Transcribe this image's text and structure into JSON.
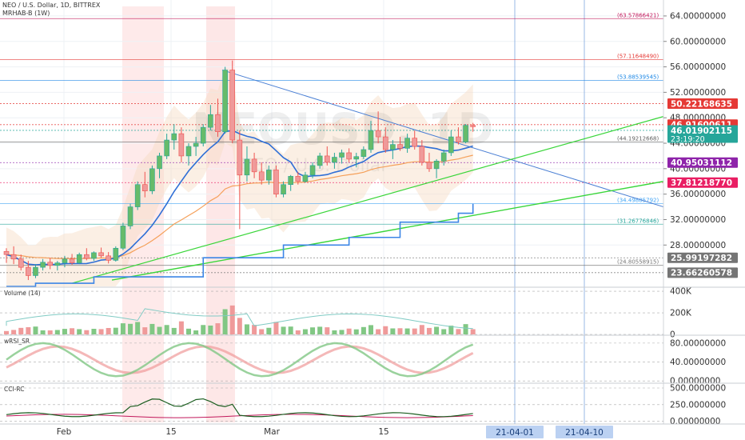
{
  "header": {
    "symbol_line": "NEO / U.S. Dollar, 1D, BITTREX",
    "indicator_line": "MRHAB-B (1W)"
  },
  "watermark": "NEOUSD, 1D",
  "watermark_sub": "NEO / U.S. Dollar",
  "colors": {
    "up": "#26a69a",
    "down": "#ef5350",
    "accent_blue": "#1e6fd9",
    "green_line": "#3ad63a",
    "orange_line": "#f5a05a",
    "magenta": "#e040fb",
    "purple": "#8e24aa"
  },
  "chart_data": {
    "type": "line",
    "title": "NEO / U.S. Dollar, 1D, BITTREX",
    "y_axis": {
      "min": 21.5,
      "max": 65.5,
      "ticks": [
        "64.00000000",
        "60.00000000",
        "56.00000000",
        "52.00000000",
        "48.00000000",
        "44.00000000",
        "40.00000000",
        "36.00000000",
        "32.00000000",
        "28.00000000"
      ]
    },
    "x_ticks": [
      "Feb",
      "15",
      "Mar",
      "15"
    ],
    "x_tick_dates": [
      "2021-02-01",
      "2021-02-15",
      "2021-03-01",
      "2021-03-15"
    ],
    "x_badges": [
      "21-04-01",
      "21-04-10"
    ],
    "price_badges": [
      {
        "value": "50.22168635",
        "y": 50.22,
        "color": "#e53935",
        "text": "#ffffff"
      },
      {
        "value": "46.91600611",
        "y": 46.92,
        "color": "#e53935",
        "text": "#ffffff"
      },
      {
        "value": "46.01902115",
        "y": 46.02,
        "color": "#26a69a",
        "text": "#ffffff",
        "countdown": "23:19:20"
      },
      {
        "value": "40.95031112",
        "y": 40.95,
        "color": "#8e24aa",
        "text": "#ffffff"
      },
      {
        "value": "37.81218770",
        "y": 37.81,
        "color": "#e91e63",
        "text": "#ffffff"
      },
      {
        "value": "25.99197282",
        "y": 25.99,
        "color": "#757575",
        "text": "#ffffff"
      },
      {
        "value": "23.66260578",
        "y": 23.66,
        "color": "#757575",
        "text": "#ffffff"
      }
    ],
    "fib_levels": [
      {
        "label": "(63.57866421)",
        "y": 63.58,
        "color": "#c2185b"
      },
      {
        "label": "(57.11648490)",
        "y": 57.12,
        "color": "#e53935"
      },
      {
        "label": "(53.88539545)",
        "y": 53.89,
        "color": "#1e88e5"
      },
      {
        "label": "(44.19212668)",
        "y": 44.19,
        "color": "#616161"
      },
      {
        "label": "(34.49885792)",
        "y": 34.5,
        "color": "#42a5f5"
      },
      {
        "label": "(31.26776846)",
        "y": 31.27,
        "color": "#26a69a"
      },
      {
        "label": "(24.80558915)",
        "y": 24.81,
        "color": "#757575"
      }
    ],
    "candles": [
      [
        27,
        27.5,
        25.2,
        26.5
      ],
      [
        26.5,
        27.8,
        25,
        25.8
      ],
      [
        25.8,
        26.5,
        24,
        24.5
      ],
      [
        24.5,
        25.5,
        22.5,
        23.2
      ],
      [
        23.2,
        25,
        22.8,
        24.5
      ],
      [
        24.5,
        25.8,
        24,
        25.3
      ],
      [
        25.3,
        26,
        24.2,
        24.8
      ],
      [
        24.8,
        25.5,
        24,
        25.2
      ],
      [
        25.2,
        26.3,
        24.5,
        25.8
      ],
      [
        25.8,
        26.6,
        24.9,
        25.2
      ],
      [
        25.2,
        26.8,
        25,
        26.5
      ],
      [
        26.5,
        27.5,
        25.6,
        25.9
      ],
      [
        25.9,
        27,
        25.5,
        26.8
      ],
      [
        26.8,
        27.6,
        26,
        26.3
      ],
      [
        26.3,
        26.9,
        25.1,
        25.6
      ],
      [
        25.6,
        27.8,
        25.4,
        27.5
      ],
      [
        27.5,
        31.5,
        27.2,
        31
      ],
      [
        31,
        34.5,
        30.5,
        34
      ],
      [
        34,
        38,
        33.5,
        37.5
      ],
      [
        37.5,
        39.5,
        35.5,
        36.5
      ],
      [
        36.5,
        40.5,
        36,
        40
      ],
      [
        40,
        42.5,
        38.5,
        42
      ],
      [
        42,
        45.5,
        41.5,
        44.5
      ],
      [
        44.5,
        47,
        43,
        45.5
      ],
      [
        45.5,
        46.5,
        41,
        42
      ],
      [
        42,
        44,
        40.5,
        43.5
      ],
      [
        43.5,
        45,
        42,
        44
      ],
      [
        44,
        47,
        43.5,
        46.5
      ],
      [
        46.5,
        50,
        46,
        48.5
      ],
      [
        48.5,
        51,
        45,
        45.8
      ],
      [
        45.8,
        56,
        45.5,
        55.5
      ],
      [
        55.5,
        57,
        44,
        44.5
      ],
      [
        44.5,
        46,
        30.5,
        39
      ],
      [
        39,
        43.5,
        38,
        41.5
      ],
      [
        41.5,
        42.5,
        38.5,
        39.5
      ],
      [
        39.5,
        41,
        37.5,
        38.2
      ],
      [
        38.2,
        40.5,
        37.5,
        39.8
      ],
      [
        39.8,
        40.5,
        35.5,
        36
      ],
      [
        36,
        38,
        35.5,
        37.5
      ],
      [
        37.5,
        39,
        36.5,
        38.8
      ],
      [
        38.8,
        39.5,
        37.5,
        38
      ],
      [
        38,
        39.5,
        37.8,
        39
      ],
      [
        39,
        41,
        38.5,
        40.5
      ],
      [
        40.5,
        42.5,
        40,
        42
      ],
      [
        42,
        43.5,
        40.5,
        41
      ],
      [
        41,
        42.5,
        40,
        41.8
      ],
      [
        41.8,
        43,
        40.8,
        42.5
      ],
      [
        42.5,
        43.2,
        41,
        41.5
      ],
      [
        41.5,
        42.5,
        40.2,
        41.9
      ],
      [
        41.9,
        43.5,
        41.5,
        43
      ],
      [
        43,
        47.5,
        42.5,
        46
      ],
      [
        46,
        49,
        44,
        45
      ],
      [
        45,
        46.5,
        42.5,
        43
      ],
      [
        43,
        44.5,
        41.5,
        43.8
      ],
      [
        43.8,
        45,
        42.8,
        43.2
      ],
      [
        43.2,
        45.5,
        42.5,
        44.8
      ],
      [
        44.8,
        46,
        43,
        43.5
      ],
      [
        43.5,
        44.5,
        40.5,
        41
      ],
      [
        41,
        42.5,
        39.5,
        40
      ],
      [
        40,
        41.5,
        38.5,
        41.2
      ],
      [
        41.2,
        43,
        40.5,
        42.5
      ],
      [
        42.5,
        46,
        42,
        45
      ],
      [
        45,
        46.5,
        43.8,
        44.2
      ],
      [
        44.2,
        47,
        44,
        46.8
      ],
      [
        46.8,
        47.2,
        45.8,
        46.6
      ]
    ],
    "volume_panel": {
      "label": "Volume (14)",
      "ticks": [
        "400K",
        "200K",
        "0"
      ]
    },
    "rsi_panel": {
      "label": "wRSI_SR",
      "ticks": [
        "80.00000000",
        "40.00000000",
        "0.00000000"
      ]
    },
    "cci_panel": {
      "label": "CCI-RC",
      "ticks": [
        "500.0000000",
        "250.0000000",
        "0.00000000"
      ]
    }
  }
}
